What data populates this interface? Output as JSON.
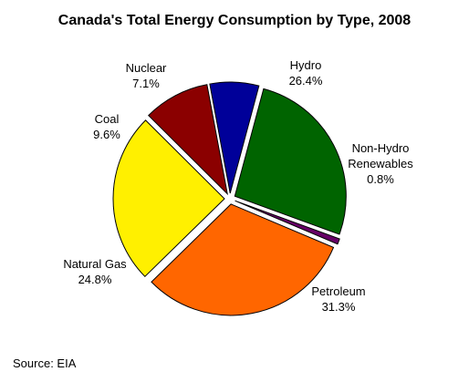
{
  "chart_data": {
    "type": "pie",
    "title": "Canada's Total Energy Consumption by Type, 2008",
    "slices": [
      {
        "label": "Hydro",
        "value_text": "26.4%",
        "value": 26.4,
        "color": "#006400"
      },
      {
        "label": "Non-Hydro Renewables",
        "label_lines": [
          "Non-Hydro",
          "Renewables"
        ],
        "value_text": "0.8%",
        "value": 0.8,
        "color": "#660066"
      },
      {
        "label": "Petroleum",
        "value_text": "31.3%",
        "value": 31.3,
        "color": "#FF6600"
      },
      {
        "label": "Natural Gas",
        "value_text": "24.8%",
        "value": 24.8,
        "color": "#FFF000"
      },
      {
        "label": "Coal",
        "value_text": "9.6%",
        "value": 9.6,
        "color": "#8B0000"
      },
      {
        "label": "Nuclear",
        "value_text": "7.1%",
        "value": 7.1,
        "color": "#000099"
      }
    ],
    "start_angle_deg": 15,
    "direction": "clockwise",
    "exploded": true
  },
  "footer": {
    "source": "Source: EIA"
  }
}
